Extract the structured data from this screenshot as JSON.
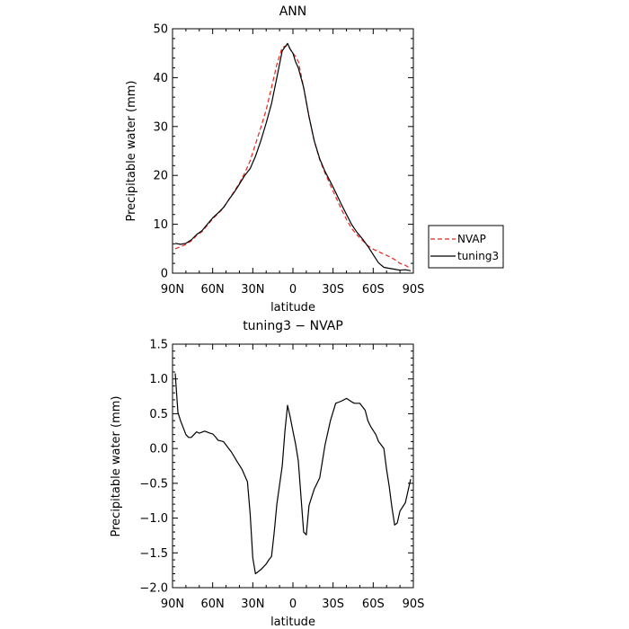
{
  "chart_data": [
    {
      "type": "line",
      "title": "ANN",
      "xlabel": "latitude",
      "ylabel": "Precipitable water (mm)",
      "xlim": [
        90,
        -90
      ],
      "ylim": [
        0,
        50
      ],
      "x_ticks": [
        90,
        60,
        30,
        0,
        -30,
        -60,
        -90
      ],
      "x_tick_labels": [
        "90N",
        "60N",
        "30N",
        "0",
        "30S",
        "60S",
        "90S"
      ],
      "y_ticks": [
        0,
        10,
        20,
        30,
        40,
        50
      ],
      "y_tick_labels": [
        "0",
        "10",
        "20",
        "30",
        "40",
        "50"
      ],
      "legend_placement": "right",
      "series": [
        {
          "name": "NVAP",
          "color": "#e8251e",
          "dash": "dashed",
          "x": [
            88,
            84,
            80,
            76,
            72,
            68,
            64,
            60,
            56,
            52,
            48,
            44,
            40,
            36,
            32,
            28,
            24,
            20,
            16,
            12,
            8,
            4,
            2,
            0,
            -2,
            -4,
            -8,
            -12,
            -16,
            -20,
            -24,
            -28,
            -32,
            -36,
            -40,
            -44,
            -48,
            -52,
            -56,
            -60,
            -64,
            -68,
            -72,
            -76,
            -80,
            -84,
            -88
          ],
          "y": [
            5.0,
            5.4,
            5.9,
            6.6,
            7.7,
            8.5,
            9.8,
            11.1,
            12.2,
            13.3,
            15.0,
            16.7,
            18.4,
            20.5,
            23.0,
            26.4,
            29.8,
            33.4,
            38.0,
            42.7,
            46.2,
            46.6,
            45.8,
            45.0,
            44.3,
            43.3,
            38.0,
            32.0,
            27.0,
            23.2,
            20.5,
            18.0,
            15.6,
            13.2,
            11.0,
            9.1,
            7.8,
            6.7,
            5.6,
            4.9,
            4.4,
            3.9,
            3.4,
            2.8,
            2.0,
            1.6,
            0.9
          ]
        },
        {
          "name": "tuning3",
          "color": "#000000",
          "dash": "solid",
          "x": [
            88,
            84,
            80,
            76,
            72,
            68,
            64,
            60,
            56,
            52,
            48,
            44,
            40,
            36,
            32,
            28,
            24,
            20,
            16,
            12,
            8,
            4,
            2,
            0,
            -2,
            -4,
            -8,
            -12,
            -16,
            -20,
            -24,
            -28,
            -32,
            -36,
            -40,
            -44,
            -48,
            -52,
            -56,
            -60,
            -64,
            -68,
            -72,
            -76,
            -80,
            -84,
            -88
          ],
          "y": [
            6.1,
            5.9,
            6.1,
            6.8,
            7.9,
            8.7,
            10.0,
            11.3,
            12.3,
            13.4,
            15.0,
            16.5,
            18.2,
            20.0,
            21.4,
            23.9,
            27.1,
            30.7,
            34.7,
            40.0,
            45.5,
            47.0,
            45.8,
            45.0,
            43.2,
            42.0,
            38.0,
            32.0,
            27.0,
            23.4,
            20.8,
            18.7,
            16.5,
            14.2,
            12.0,
            9.9,
            8.3,
            7.0,
            5.5,
            3.8,
            2.1,
            1.2,
            1.0,
            0.8,
            0.6,
            0.7,
            0.5
          ]
        }
      ]
    },
    {
      "type": "line",
      "title": "tuning3 − NVAP",
      "xlabel": "latitude",
      "ylabel": "Precipitable water (mm)",
      "xlim": [
        90,
        -90
      ],
      "ylim": [
        -2.0,
        1.5
      ],
      "x_ticks": [
        90,
        60,
        30,
        0,
        -30,
        -60,
        -90
      ],
      "x_tick_labels": [
        "90N",
        "60N",
        "30N",
        "0",
        "30S",
        "60S",
        "90S"
      ],
      "y_ticks": [
        -2.0,
        -1.5,
        -1.0,
        -0.5,
        0.0,
        0.5,
        1.0,
        1.5
      ],
      "y_tick_labels": [
        "−2.0",
        "−1.5",
        "−1.0",
        "−0.5",
        "0.0",
        "0.5",
        "1.0",
        "1.5"
      ],
      "series": [
        {
          "color": "#000000",
          "x": [
            88,
            86,
            84,
            80,
            78,
            76,
            72,
            70,
            66,
            62,
            60,
            58,
            56,
            52,
            50,
            48,
            46,
            42,
            38,
            34,
            32,
            30,
            28,
            24,
            20,
            18,
            16,
            14,
            12,
            8,
            6,
            4,
            2,
            0,
            -2,
            -4,
            -8,
            -10,
            -12,
            -14,
            -16,
            -20,
            -24,
            -28,
            -32,
            -36,
            -40,
            -44,
            -46,
            -50,
            -54,
            -56,
            -58,
            -62,
            -64,
            -66,
            -68,
            -70,
            -72,
            -74,
            -76,
            -78,
            -80,
            -84,
            -88
          ],
          "y": [
            1.08,
            0.52,
            0.4,
            0.2,
            0.16,
            0.16,
            0.24,
            0.22,
            0.25,
            0.22,
            0.21,
            0.17,
            0.12,
            0.1,
            0.05,
            0.0,
            -0.05,
            -0.18,
            -0.3,
            -0.48,
            -0.94,
            -1.57,
            -1.8,
            -1.74,
            -1.66,
            -1.6,
            -1.55,
            -1.2,
            -0.8,
            -0.25,
            0.25,
            0.62,
            0.45,
            0.25,
            0.06,
            -0.18,
            -1.2,
            -1.24,
            -0.82,
            -0.7,
            -0.58,
            -0.42,
            0.05,
            0.4,
            0.65,
            0.68,
            0.72,
            0.67,
            0.65,
            0.65,
            0.55,
            0.4,
            0.32,
            0.2,
            0.1,
            0.05,
            0.0,
            -0.3,
            -0.55,
            -0.85,
            -1.1,
            -1.07,
            -0.9,
            -0.78,
            -0.44
          ]
        }
      ]
    }
  ]
}
